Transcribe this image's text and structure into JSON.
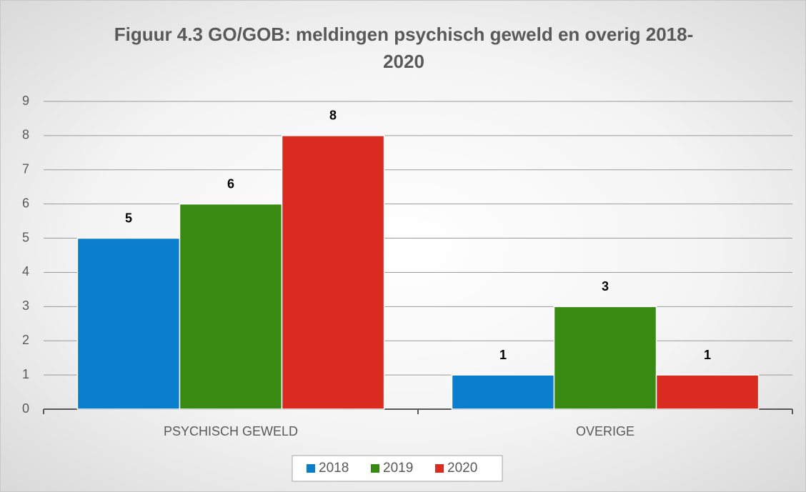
{
  "chart_data": {
    "type": "bar",
    "title": "Figuur 4.3 GO/GOB: meldingen psychisch geweld en overig 2018-2020",
    "categories": [
      "PSYCHISCH GEWELD",
      "OVERIGE"
    ],
    "series": [
      {
        "name": "2018",
        "color": "#0a7dcc",
        "values": [
          5,
          1
        ]
      },
      {
        "name": "2019",
        "color": "#388a12",
        "values": [
          6,
          3
        ]
      },
      {
        "name": "2020",
        "color": "#d92b20",
        "values": [
          8,
          1
        ]
      }
    ],
    "ylim": [
      0,
      9
    ],
    "yticks": [
      0,
      1,
      2,
      3,
      4,
      5,
      6,
      7,
      8,
      9
    ],
    "grid": true,
    "legend": "bottom"
  }
}
